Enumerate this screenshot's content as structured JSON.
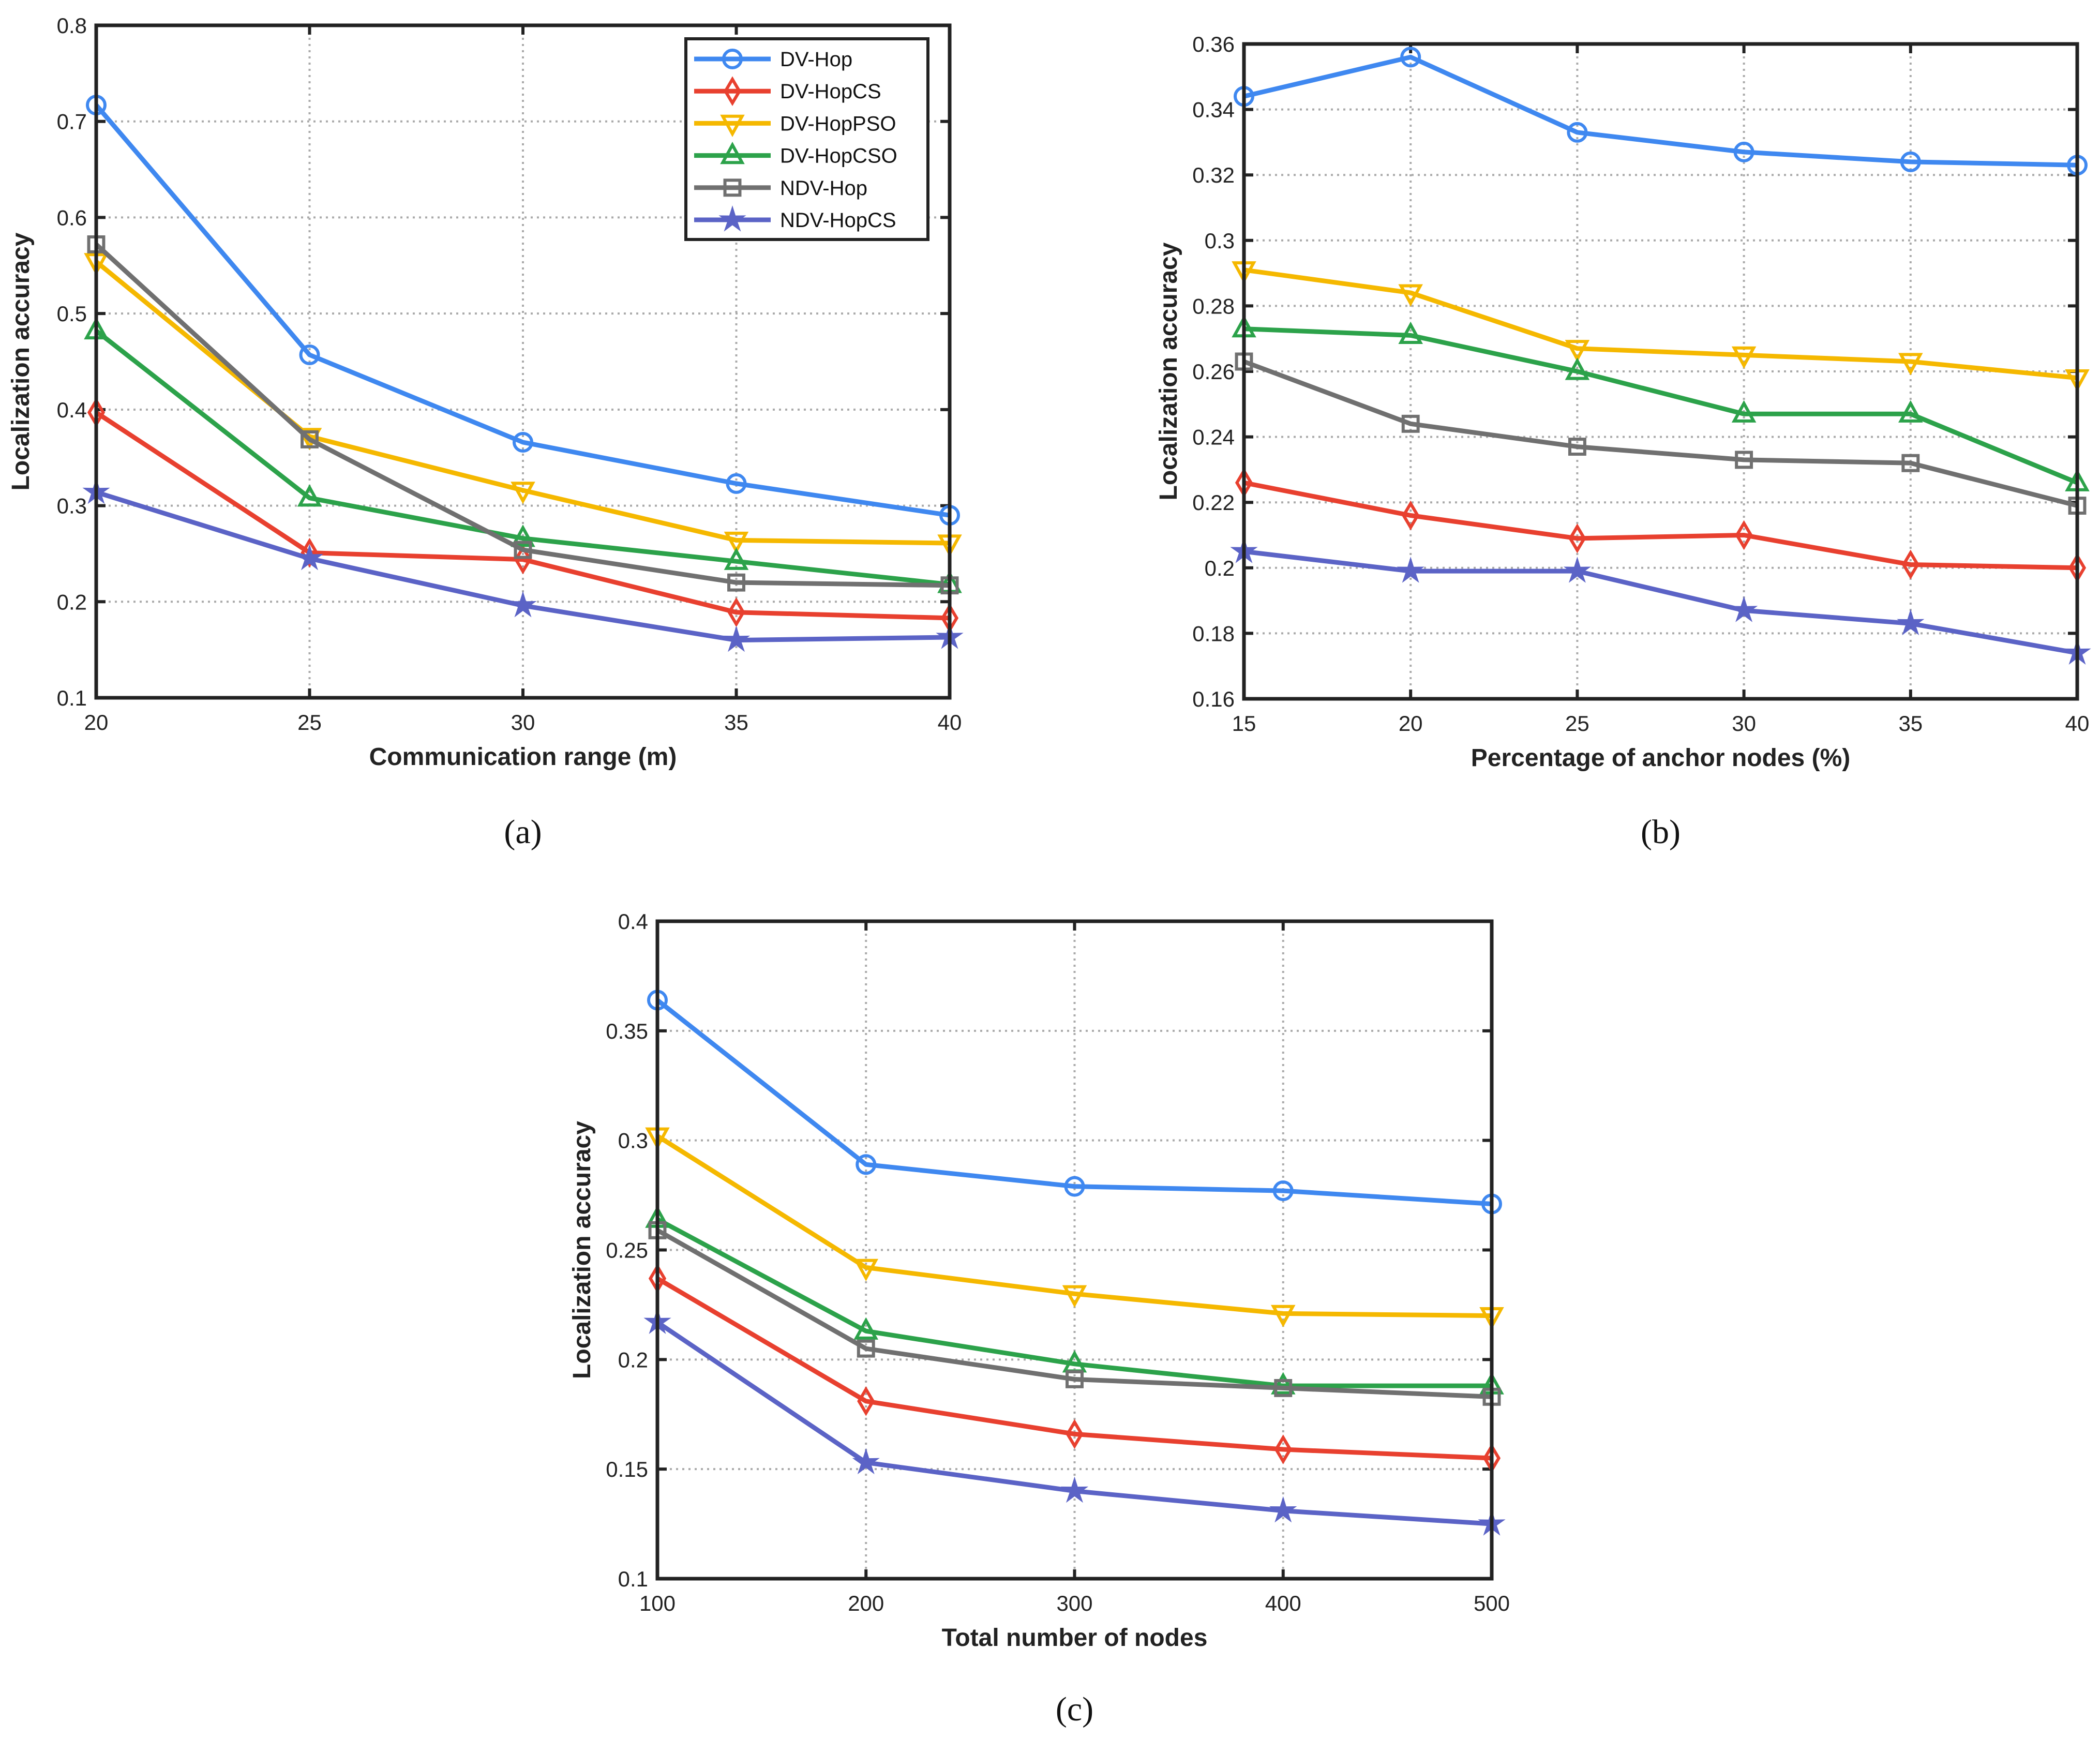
{
  "series_styles": [
    {
      "name": "DV-Hop",
      "color": "#3f88f0",
      "marker": "circle"
    },
    {
      "name": "DV-HopCS",
      "color": "#e8402f",
      "marker": "diamond"
    },
    {
      "name": "DV-HopPSO",
      "color": "#f5b800",
      "marker": "triangle-down"
    },
    {
      "name": "DV-HopCSO",
      "color": "#2ca24a",
      "marker": "triangle-up"
    },
    {
      "name": "NDV-Hop",
      "color": "#707070",
      "marker": "square"
    },
    {
      "name": "NDV-HopCS",
      "color": "#5b63c6",
      "marker": "star"
    }
  ],
  "chart_data": [
    {
      "type": "line",
      "caption": "(a)",
      "xlabel": "Communication range (m)",
      "ylabel": "Localization accuracy",
      "x": [
        20,
        25,
        30,
        35,
        40
      ],
      "xlim": [
        20,
        40
      ],
      "ylim": [
        0.1,
        0.8
      ],
      "xticks": [
        20,
        25,
        30,
        35,
        40
      ],
      "yticks": [
        0.1,
        0.2,
        0.3,
        0.4,
        0.5,
        0.6,
        0.7,
        0.8
      ],
      "grid": true,
      "legend": "top-right",
      "series": [
        {
          "name": "DV-Hop",
          "values": [
            0.717,
            0.457,
            0.366,
            0.323,
            0.29
          ]
        },
        {
          "name": "DV-HopCS",
          "values": [
            0.397,
            0.251,
            0.244,
            0.189,
            0.183
          ]
        },
        {
          "name": "DV-HopPSO",
          "values": [
            0.554,
            0.372,
            0.316,
            0.264,
            0.261
          ]
        },
        {
          "name": "DV-HopCSO",
          "values": [
            0.482,
            0.308,
            0.266,
            0.242,
            0.218
          ]
        },
        {
          "name": "NDV-Hop",
          "values": [
            0.572,
            0.369,
            0.254,
            0.22,
            0.217
          ]
        },
        {
          "name": "NDV-HopCS",
          "values": [
            0.314,
            0.245,
            0.196,
            0.16,
            0.163
          ]
        }
      ]
    },
    {
      "type": "line",
      "caption": "(b)",
      "xlabel": "Percentage of anchor nodes (%)",
      "ylabel": "Localization accuracy",
      "x": [
        15,
        20,
        25,
        30,
        35,
        40
      ],
      "xlim": [
        15,
        40
      ],
      "ylim": [
        0.16,
        0.36
      ],
      "xticks": [
        15,
        20,
        25,
        30,
        35,
        40
      ],
      "yticks": [
        0.16,
        0.18,
        0.2,
        0.22,
        0.24,
        0.26,
        0.28,
        0.3,
        0.32,
        0.34,
        0.36
      ],
      "grid": true,
      "legend": "none",
      "series": [
        {
          "name": "DV-Hop",
          "values": [
            0.344,
            0.356,
            0.333,
            0.327,
            0.324,
            0.323
          ]
        },
        {
          "name": "DV-HopCS",
          "values": [
            0.226,
            0.216,
            0.209,
            0.21,
            0.201,
            0.2
          ]
        },
        {
          "name": "DV-HopPSO",
          "values": [
            0.291,
            0.284,
            0.267,
            0.265,
            0.263,
            0.258
          ]
        },
        {
          "name": "DV-HopCSO",
          "values": [
            0.273,
            0.271,
            0.26,
            0.247,
            0.247,
            0.226
          ]
        },
        {
          "name": "NDV-Hop",
          "values": [
            0.263,
            0.244,
            0.237,
            0.233,
            0.232,
            0.219
          ]
        },
        {
          "name": "NDV-HopCS",
          "values": [
            0.205,
            0.199,
            0.199,
            0.187,
            0.183,
            0.174
          ]
        }
      ]
    },
    {
      "type": "line",
      "caption": "(c)",
      "xlabel": "Total number of nodes",
      "ylabel": "Localization accuracy",
      "x": [
        100,
        200,
        300,
        400,
        500
      ],
      "xlim": [
        100,
        500
      ],
      "ylim": [
        0.1,
        0.4
      ],
      "xticks": [
        100,
        200,
        300,
        400,
        500
      ],
      "yticks": [
        0.1,
        0.15,
        0.2,
        0.25,
        0.3,
        0.35,
        0.4
      ],
      "grid": true,
      "legend": "none",
      "series": [
        {
          "name": "DV-Hop",
          "values": [
            0.364,
            0.289,
            0.279,
            0.277,
            0.271
          ]
        },
        {
          "name": "DV-HopCS",
          "values": [
            0.237,
            0.181,
            0.166,
            0.159,
            0.155
          ]
        },
        {
          "name": "DV-HopPSO",
          "values": [
            0.302,
            0.242,
            0.23,
            0.221,
            0.22
          ]
        },
        {
          "name": "DV-HopCSO",
          "values": [
            0.264,
            0.213,
            0.198,
            0.188,
            0.188
          ]
        },
        {
          "name": "NDV-Hop",
          "values": [
            0.259,
            0.205,
            0.191,
            0.187,
            0.183
          ]
        },
        {
          "name": "NDV-HopCS",
          "values": [
            0.217,
            0.153,
            0.14,
            0.131,
            0.125
          ]
        }
      ]
    }
  ]
}
